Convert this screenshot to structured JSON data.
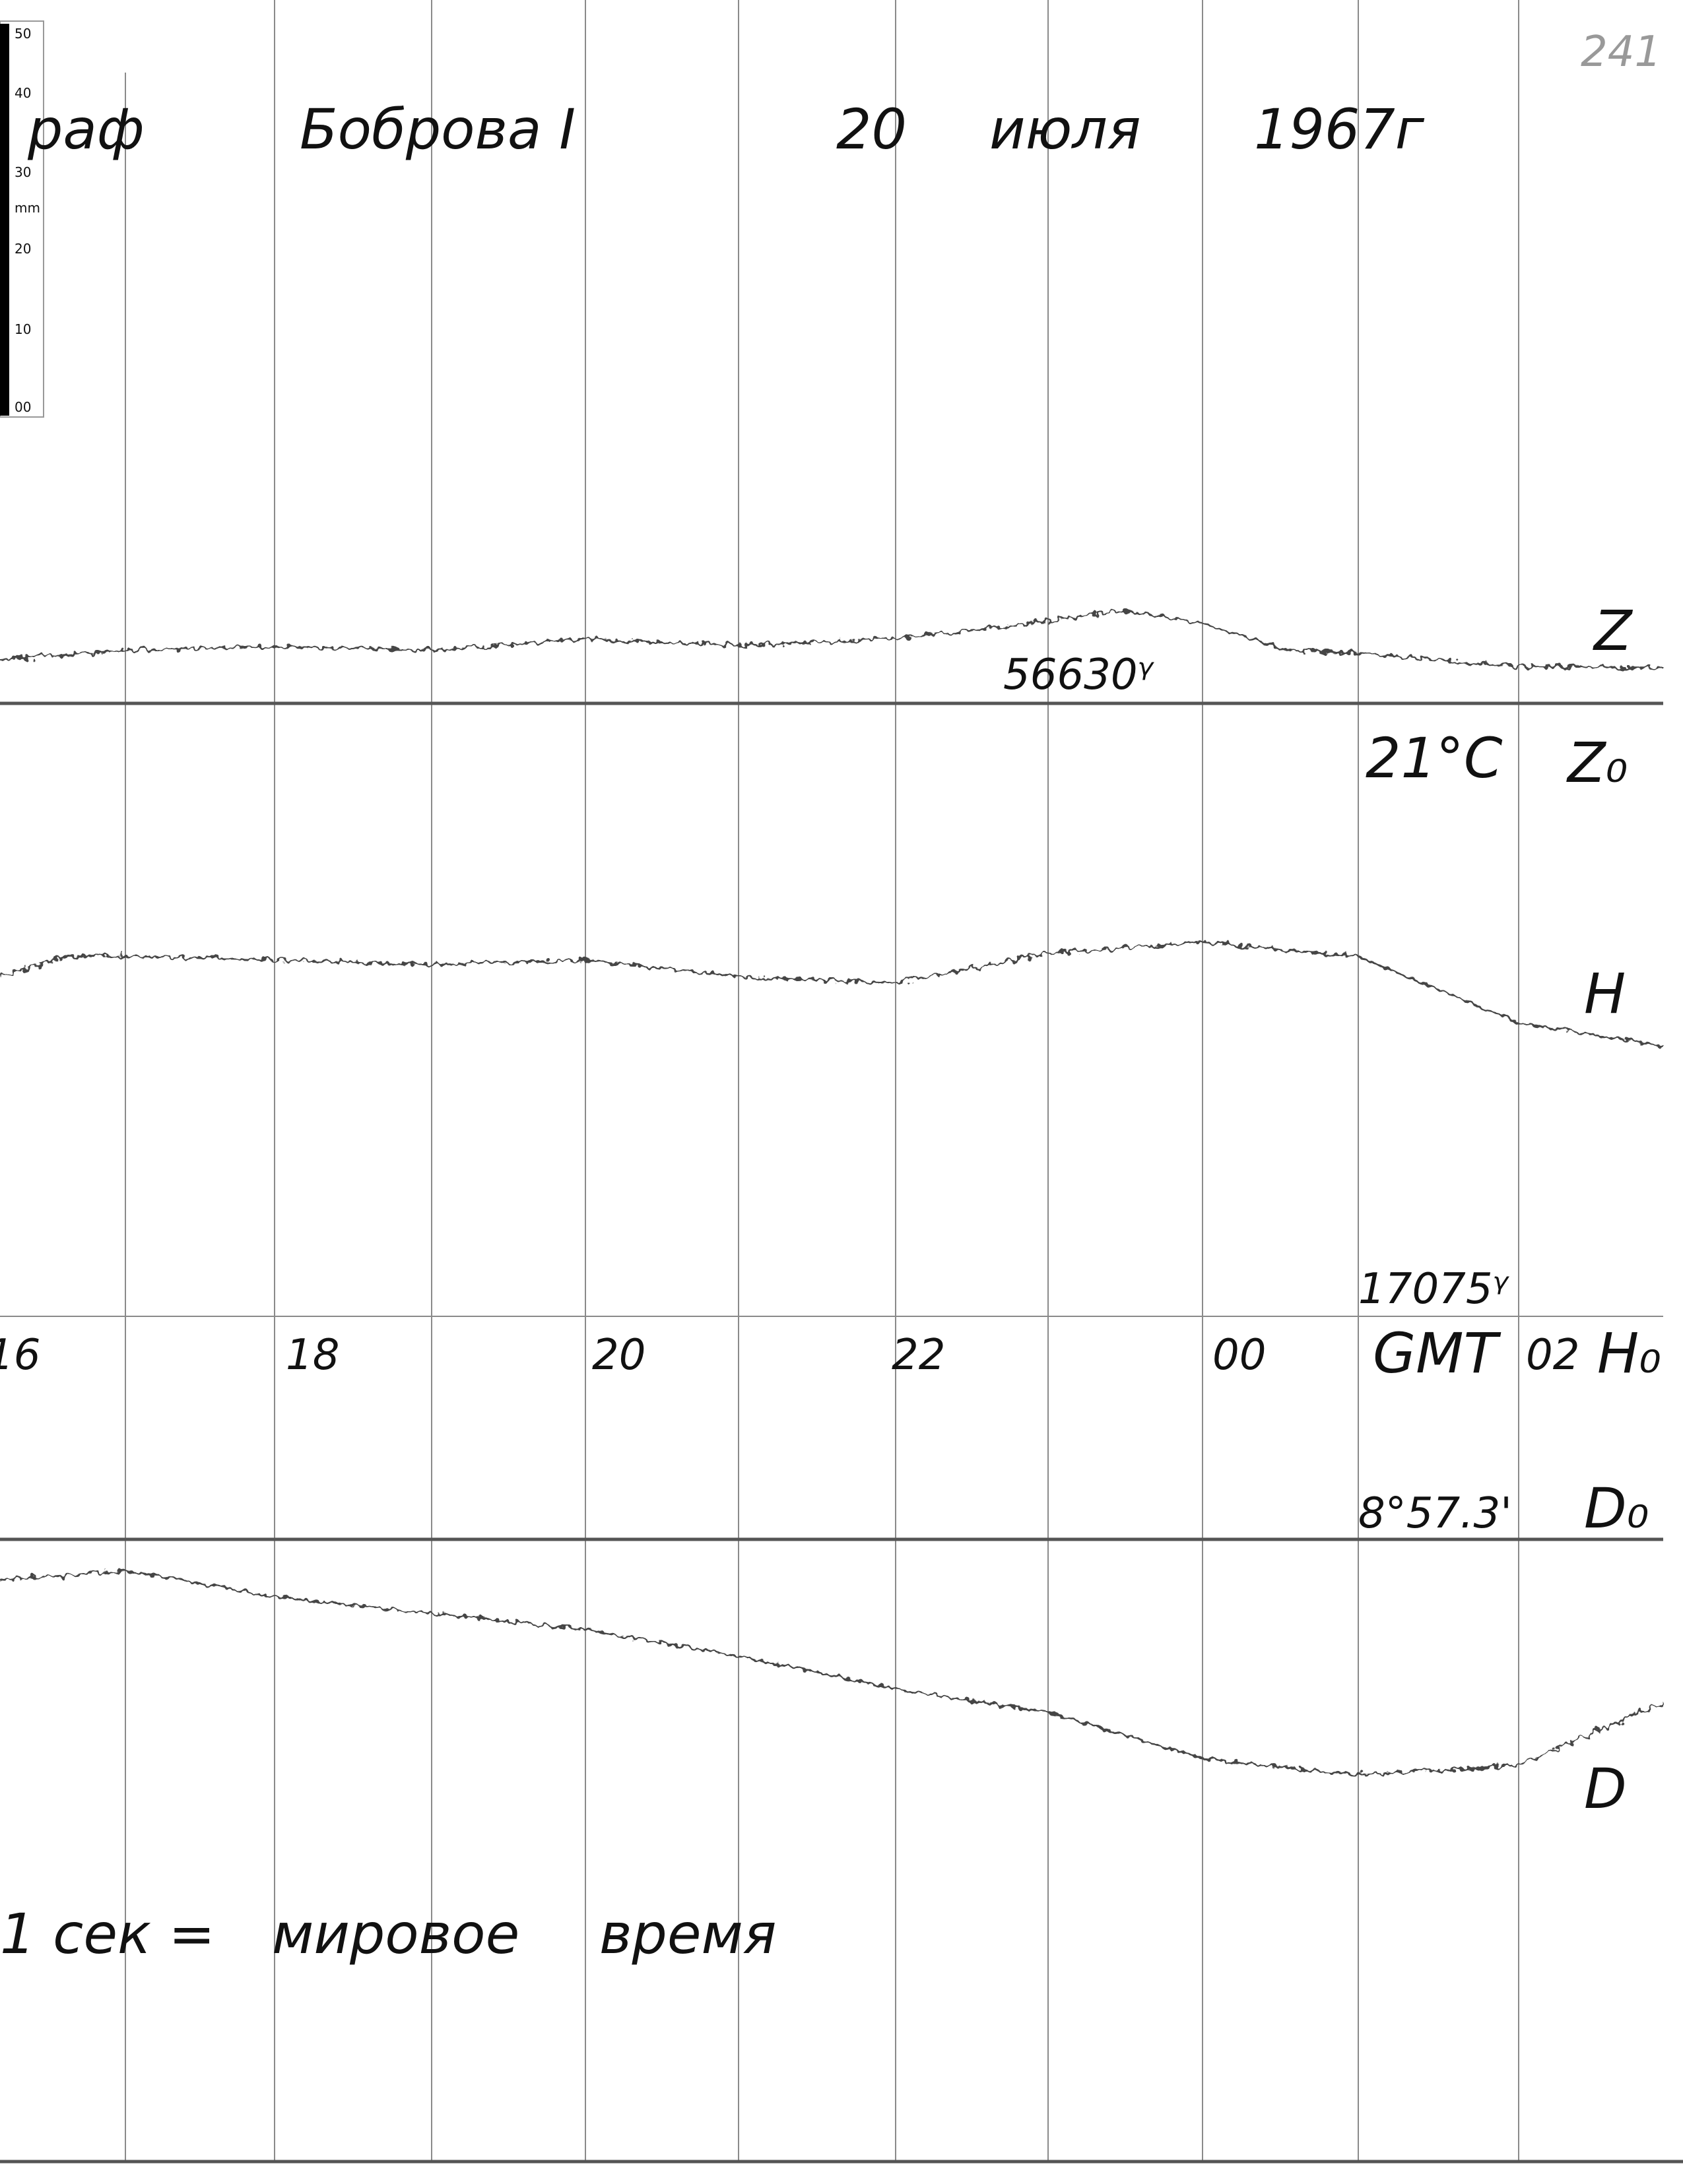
{
  "header": {
    "station_fragment": "раф",
    "title": "Боброва I",
    "day": "20",
    "month": "июля",
    "year": "1967г",
    "sheet_number": "241"
  },
  "scale_bar": {
    "labels": [
      "50",
      "40",
      "30",
      "mm",
      "20",
      "10",
      "00"
    ]
  },
  "components": {
    "z": {
      "label": "Z",
      "base_value": "56630ᵞ",
      "temperature": "21°C",
      "base_label": "Z₀"
    },
    "h": {
      "label": "H",
      "base_value": "17075ᵞ",
      "base_label": "H₀"
    },
    "d": {
      "label": "D",
      "base_value": "8°57.3'",
      "base_label": "D₀"
    }
  },
  "time_axis": {
    "hours": [
      "16",
      "18",
      "20",
      "22",
      "00",
      "02"
    ],
    "system": "GMT"
  },
  "footer": {
    "time_mark": "1 сек =",
    "note_1": "мировое",
    "note_2": "время"
  }
}
